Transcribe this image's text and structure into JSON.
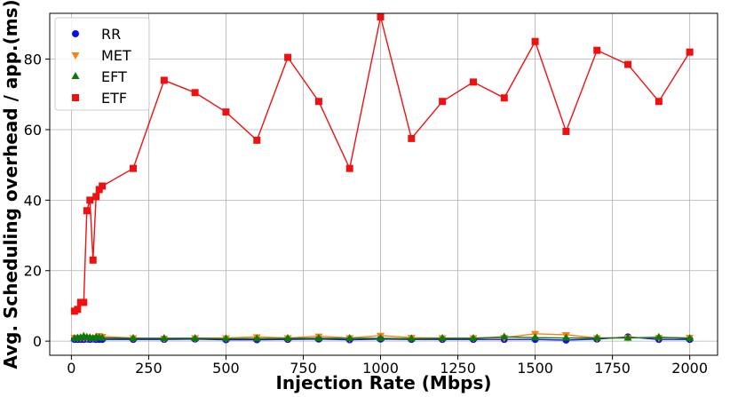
{
  "chart_data": {
    "type": "line",
    "xlabel": "Injection Rate (Mbps)",
    "ylabel": "Avg. Scheduling overhead / app.(ms)",
    "xlim": [
      -70,
      2090
    ],
    "ylim": [
      -4,
      93
    ],
    "xticks": [
      0,
      250,
      500,
      750,
      1000,
      1250,
      1500,
      1750,
      2000
    ],
    "yticks": [
      0,
      20,
      40,
      60,
      80
    ],
    "grid": true,
    "legend_position": "top-left",
    "x": [
      10,
      20,
      30,
      40,
      50,
      60,
      70,
      80,
      90,
      100,
      200,
      300,
      400,
      500,
      600,
      700,
      800,
      900,
      1000,
      1100,
      1200,
      1300,
      1400,
      1500,
      1600,
      1700,
      1800,
      1900,
      2000
    ],
    "series": [
      {
        "name": "RR",
        "color": "#1010ee",
        "marker": "circle",
        "values": [
          0.5,
          0.5,
          0.5,
          0.5,
          0.6,
          0.5,
          0.6,
          0.5,
          0.5,
          0.5,
          0.5,
          0.5,
          0.6,
          0.4,
          0.4,
          0.5,
          0.6,
          0.4,
          0.6,
          0.5,
          0.5,
          0.5,
          0.5,
          0.5,
          0.3,
          0.6,
          1.2,
          0.5,
          0.5
        ]
      },
      {
        "name": "MET",
        "color": "#ff7f0e",
        "marker": "triangle-down",
        "values": [
          1.0,
          1.0,
          1.0,
          1.0,
          1.0,
          1.0,
          1.0,
          1.0,
          1.5,
          1.3,
          0.9,
          0.8,
          0.9,
          0.9,
          1.2,
          0.9,
          1.4,
          0.9,
          1.6,
          1.0,
          0.9,
          0.9,
          1.0,
          2.1,
          1.8,
          0.9,
          1.0,
          1.0,
          1.0
        ]
      },
      {
        "name": "EFT",
        "color": "#0a7a0a",
        "marker": "triangle-up",
        "values": [
          0.8,
          0.9,
          1.0,
          1.4,
          1.1,
          1.0,
          0.8,
          1.1,
          1.0,
          0.9,
          0.8,
          0.8,
          0.8,
          0.7,
          0.7,
          0.8,
          0.8,
          0.8,
          0.8,
          0.7,
          0.8,
          0.8,
          1.2,
          1.0,
          0.9,
          0.9,
          0.9,
          1.1,
          0.8
        ]
      },
      {
        "name": "ETF",
        "color": "#ee1111",
        "marker": "square",
        "values": [
          8.5,
          9.0,
          11.0,
          11.0,
          37.0,
          40.0,
          23.0,
          41.0,
          43.0,
          44.0,
          49.0,
          74.0,
          70.5,
          65.0,
          57.0,
          80.5,
          68.0,
          49.0,
          92.0,
          57.5,
          68.0,
          73.5,
          69.0,
          85.0,
          59.5,
          82.5,
          78.5,
          68.0,
          82.0
        ]
      }
    ]
  }
}
